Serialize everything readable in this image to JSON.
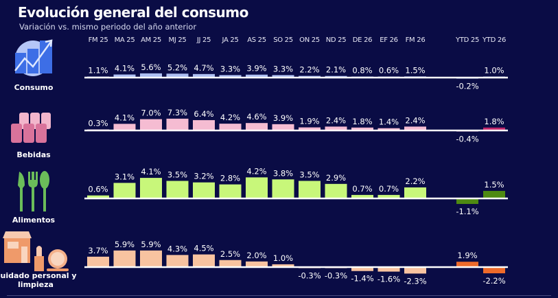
{
  "title": "Evolución general del consumo",
  "subtitle": "Variación vs. mismo periodo del año anterior",
  "chart_data": {
    "type": "bar",
    "title": "Evolución general del consumo",
    "subtitle": "Variación vs. mismo periodo del año anterior",
    "categories": [
      "FM 25",
      "MA 25",
      "AM 25",
      "MJ 25",
      "JJ 25",
      "JA 25",
      "AS 25",
      "SO 25",
      "ON 25",
      "ND 25",
      "DE 26",
      "EF 26",
      "FM 26",
      "YTD 25",
      "YTD 26"
    ],
    "unit": "%",
    "series": [
      {
        "name": "Consumo",
        "icon": "chart-growth-icon",
        "color": "#aebff2",
        "ytd_colors": [
          "#aebff2",
          "#aebff2"
        ],
        "values": [
          1.1,
          4.1,
          5.6,
          5.2,
          4.7,
          3.3,
          3.9,
          3.3,
          2.2,
          2.1,
          0.8,
          0.6,
          1.5,
          -0.2,
          1.0
        ]
      },
      {
        "name": "Bebidas",
        "icon": "cans-icon",
        "color": "#f5bcd2",
        "ytd_colors": [
          "#f5bcd2",
          "#c2266a"
        ],
        "values": [
          0.3,
          4.1,
          7.0,
          7.3,
          6.4,
          4.2,
          4.6,
          3.9,
          1.9,
          2.4,
          1.8,
          1.4,
          2.4,
          -0.4,
          1.8
        ]
      },
      {
        "name": "Alimentos",
        "icon": "cutlery-icon",
        "color": "#c8f77a",
        "ytd_colors": [
          "#4e8a12",
          "#4e8a12"
        ],
        "values": [
          0.6,
          3.1,
          4.1,
          3.5,
          3.2,
          2.8,
          4.2,
          3.8,
          3.5,
          2.9,
          0.7,
          0.7,
          2.2,
          -1.1,
          1.5
        ]
      },
      {
        "name": "Cuidado personal y limpieza",
        "icon": "store-cosmetics-icon",
        "color": "#f8c3a0",
        "ytd_colors": [
          "#ee6a2a",
          "#ee6a2a"
        ],
        "values": [
          3.7,
          5.9,
          5.9,
          4.3,
          4.5,
          2.5,
          2.0,
          1.0,
          -0.3,
          -0.3,
          -1.4,
          -1.6,
          -2.3,
          1.9,
          -2.2
        ]
      }
    ]
  }
}
